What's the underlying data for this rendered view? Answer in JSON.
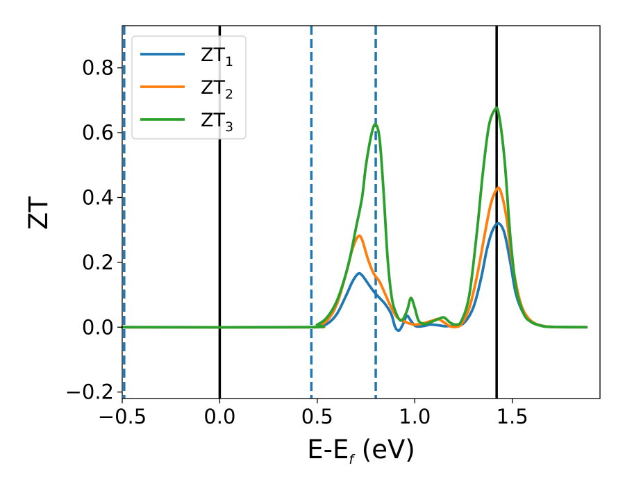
{
  "chart_data": {
    "type": "line",
    "xlabel": {
      "main": "E-E",
      "sub": "f",
      "unit": " (eV)"
    },
    "ylabel": "ZT",
    "xlim": [
      -0.5,
      1.95
    ],
    "ylim": [
      -0.22,
      0.93
    ],
    "xticks": [
      -0.5,
      0.0,
      0.5,
      1.0,
      1.5
    ],
    "xtick_labels": [
      "−0.5",
      "0.0",
      "0.5",
      "1.0",
      "1.5"
    ],
    "yticks": [
      -0.2,
      0.0,
      0.2,
      0.4,
      0.6,
      0.8
    ],
    "ytick_labels": [
      "−0.2",
      "0.0",
      "0.2",
      "0.4",
      "0.6",
      "0.8"
    ],
    "grid": false,
    "legend_position": "top-left",
    "vlines_solid": [
      0.0,
      1.42
    ],
    "vlines_dashed": [
      -0.49,
      0.47,
      0.8
    ],
    "vline_solid_color": "#000000",
    "vline_dashed_color": "#1f77b4",
    "series": [
      {
        "name": "ZT",
        "sub": "1",
        "color": "#1f77b4",
        "x": [
          -0.5,
          0.45,
          0.5,
          0.55,
          0.6,
          0.65,
          0.68,
          0.71,
          0.73,
          0.76,
          0.79,
          0.82,
          0.85,
          0.88,
          0.9,
          0.92,
          0.94,
          0.96,
          0.98,
          1.0,
          1.02,
          1.05,
          1.08,
          1.12,
          1.16,
          1.2,
          1.25,
          1.3,
          1.34,
          1.37,
          1.4,
          1.43,
          1.46,
          1.49,
          1.52,
          1.56,
          1.6,
          1.65,
          1.7,
          1.88
        ],
        "y": [
          0.0,
          0.0,
          0.003,
          0.01,
          0.04,
          0.1,
          0.14,
          0.165,
          0.16,
          0.135,
          0.11,
          0.09,
          0.07,
          0.04,
          0.0,
          -0.01,
          0.01,
          0.035,
          0.02,
          0.005,
          0.002,
          0.004,
          0.008,
          0.006,
          0.003,
          0.005,
          0.012,
          0.06,
          0.15,
          0.24,
          0.3,
          0.32,
          0.29,
          0.2,
          0.1,
          0.04,
          0.015,
          0.005,
          0.001,
          0.0
        ]
      },
      {
        "name": "ZT",
        "sub": "2",
        "color": "#ff7f0e",
        "x": [
          -0.5,
          0.45,
          0.5,
          0.55,
          0.6,
          0.65,
          0.68,
          0.71,
          0.73,
          0.76,
          0.79,
          0.82,
          0.85,
          0.88,
          0.91,
          0.94,
          0.97,
          1.0,
          1.03,
          1.06,
          1.09,
          1.12,
          1.15,
          1.18,
          1.21,
          1.24,
          1.28,
          1.32,
          1.36,
          1.39,
          1.42,
          1.44,
          1.47,
          1.5,
          1.54,
          1.58,
          1.63,
          1.7,
          1.88
        ],
        "y": [
          0.0,
          0.0,
          0.005,
          0.02,
          0.07,
          0.17,
          0.24,
          0.28,
          0.27,
          0.21,
          0.165,
          0.14,
          0.1,
          0.06,
          0.03,
          0.02,
          0.012,
          0.008,
          0.01,
          0.015,
          0.02,
          0.025,
          0.015,
          0.003,
          0.001,
          0.01,
          0.06,
          0.16,
          0.29,
          0.38,
          0.425,
          0.42,
          0.34,
          0.2,
          0.08,
          0.03,
          0.008,
          0.001,
          0.0
        ]
      },
      {
        "name": "ZT",
        "sub": "3",
        "color": "#2ca02c",
        "x": [
          -0.5,
          0.45,
          0.5,
          0.55,
          0.6,
          0.64,
          0.67,
          0.7,
          0.73,
          0.75,
          0.78,
          0.8,
          0.82,
          0.84,
          0.86,
          0.88,
          0.9,
          0.93,
          0.96,
          0.98,
          1.0,
          1.02,
          1.05,
          1.08,
          1.12,
          1.15,
          1.18,
          1.21,
          1.24,
          1.28,
          1.32,
          1.35,
          1.38,
          1.41,
          1.43,
          1.46,
          1.49,
          1.52,
          1.56,
          1.6,
          1.65,
          1.7,
          1.88
        ],
        "y": [
          0.0,
          0.0,
          0.008,
          0.03,
          0.08,
          0.15,
          0.22,
          0.31,
          0.4,
          0.5,
          0.6,
          0.625,
          0.58,
          0.42,
          0.22,
          0.1,
          0.05,
          0.02,
          0.05,
          0.09,
          0.06,
          0.02,
          0.01,
          0.015,
          0.025,
          0.03,
          0.015,
          0.008,
          0.02,
          0.1,
          0.3,
          0.48,
          0.62,
          0.67,
          0.66,
          0.52,
          0.28,
          0.12,
          0.04,
          0.015,
          0.004,
          0.001,
          0.0
        ]
      }
    ]
  }
}
